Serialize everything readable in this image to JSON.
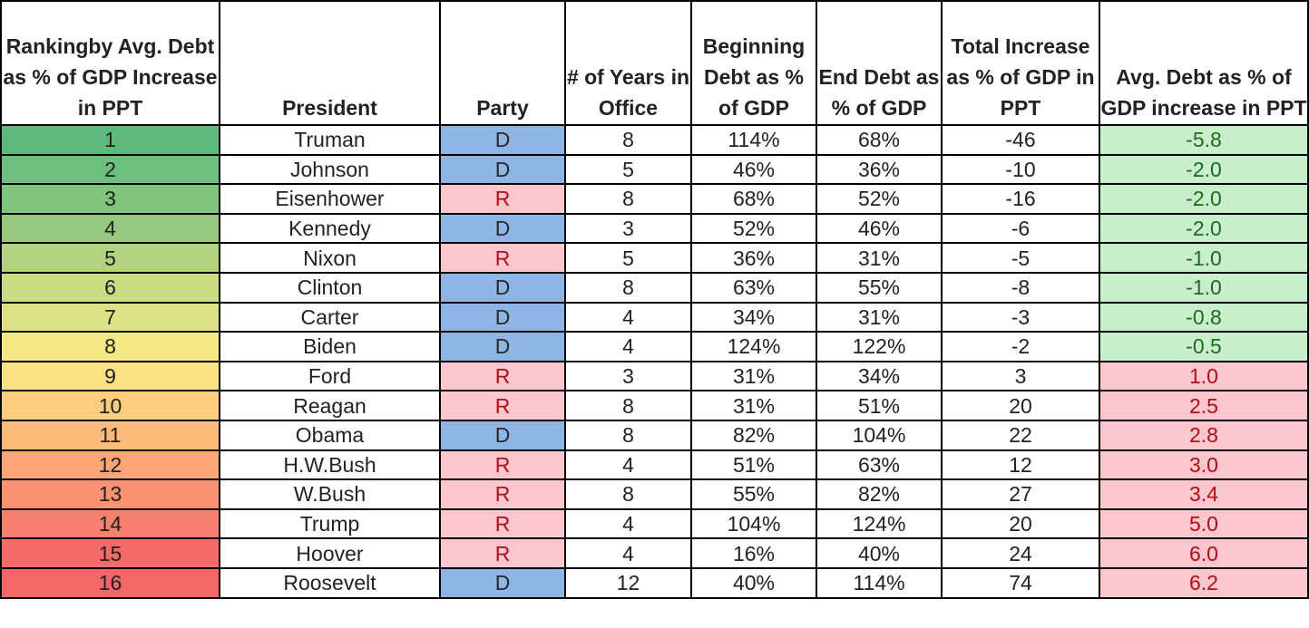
{
  "chart_data": {
    "type": "table",
    "columns": [
      "Rankingby Avg. Debt as % of GDP Increase in PPT",
      "President",
      "Party",
      "# of Years in Office",
      "Beginning Debt as % of GDP",
      "End Debt as % of GDP",
      "Total Increase as % of GDP in PPT",
      "Avg. Debt as % of GDP increase in PPT"
    ],
    "rows": [
      {
        "rank": "1",
        "president": "Truman",
        "party": "D",
        "years": "8",
        "begin": "114%",
        "end": "68%",
        "total": "-46",
        "avg": "-5.8"
      },
      {
        "rank": "2",
        "president": "Johnson",
        "party": "D",
        "years": "5",
        "begin": "46%",
        "end": "36%",
        "total": "-10",
        "avg": "-2.0"
      },
      {
        "rank": "3",
        "president": "Eisenhower",
        "party": "R",
        "years": "8",
        "begin": "68%",
        "end": "52%",
        "total": "-16",
        "avg": "-2.0"
      },
      {
        "rank": "4",
        "president": "Kennedy",
        "party": "D",
        "years": "3",
        "begin": "52%",
        "end": "46%",
        "total": "-6",
        "avg": "-2.0"
      },
      {
        "rank": "5",
        "president": "Nixon",
        "party": "R",
        "years": "5",
        "begin": "36%",
        "end": "31%",
        "total": "-5",
        "avg": "-1.0"
      },
      {
        "rank": "6",
        "president": "Clinton",
        "party": "D",
        "years": "8",
        "begin": "63%",
        "end": "55%",
        "total": "-8",
        "avg": "-1.0"
      },
      {
        "rank": "7",
        "president": "Carter",
        "party": "D",
        "years": "4",
        "begin": "34%",
        "end": "31%",
        "total": "-3",
        "avg": "-0.8"
      },
      {
        "rank": "8",
        "president": "Biden",
        "party": "D",
        "years": "4",
        "begin": "124%",
        "end": "122%",
        "total": "-2",
        "avg": "-0.5"
      },
      {
        "rank": "9",
        "president": "Ford",
        "party": "R",
        "years": "3",
        "begin": "31%",
        "end": "34%",
        "total": "3",
        "avg": "1.0"
      },
      {
        "rank": "10",
        "president": "Reagan",
        "party": "R",
        "years": "8",
        "begin": "31%",
        "end": "51%",
        "total": "20",
        "avg": "2.5"
      },
      {
        "rank": "11",
        "president": "Obama",
        "party": "D",
        "years": "8",
        "begin": "82%",
        "end": "104%",
        "total": "22",
        "avg": "2.8"
      },
      {
        "rank": "12",
        "president": "H.W.Bush",
        "party": "R",
        "years": "4",
        "begin": "51%",
        "end": "63%",
        "total": "12",
        "avg": "3.0"
      },
      {
        "rank": "13",
        "president": "W.Bush",
        "party": "R",
        "years": "8",
        "begin": "55%",
        "end": "82%",
        "total": "27",
        "avg": "3.4"
      },
      {
        "rank": "14",
        "president": "Trump",
        "party": "R",
        "years": "4",
        "begin": "104%",
        "end": "124%",
        "total": "20",
        "avg": "5.0"
      },
      {
        "rank": "15",
        "president": "Hoover",
        "party": "R",
        "years": "4",
        "begin": "16%",
        "end": "40%",
        "total": "24",
        "avg": "6.0"
      },
      {
        "rank": "16",
        "president": "Roosevelt",
        "party": "D",
        "years": "12",
        "begin": "40%",
        "end": "114%",
        "total": "74",
        "avg": "6.2"
      }
    ],
    "rank_colors": [
      "#5dba7c",
      "#6cbf7c",
      "#80c47e",
      "#96c97f",
      "#b2d480",
      "#c8dc82",
      "#dce283",
      "#f6e884",
      "#fde182",
      "#fdcd7e",
      "#fdba79",
      "#fca575",
      "#fb9372",
      "#f8806e",
      "#f56b69",
      "#f46668"
    ],
    "colors": {
      "party_D": "#8eb5e3",
      "party_R": "#fbc6cd",
      "party_R_text": "#b30f16",
      "avg_negative_bg": "#c8eecb",
      "avg_negative_text": "#1e6a1e",
      "avg_positive_bg": "#fbc6cd",
      "avg_positive_text": "#b00d14"
    }
  }
}
